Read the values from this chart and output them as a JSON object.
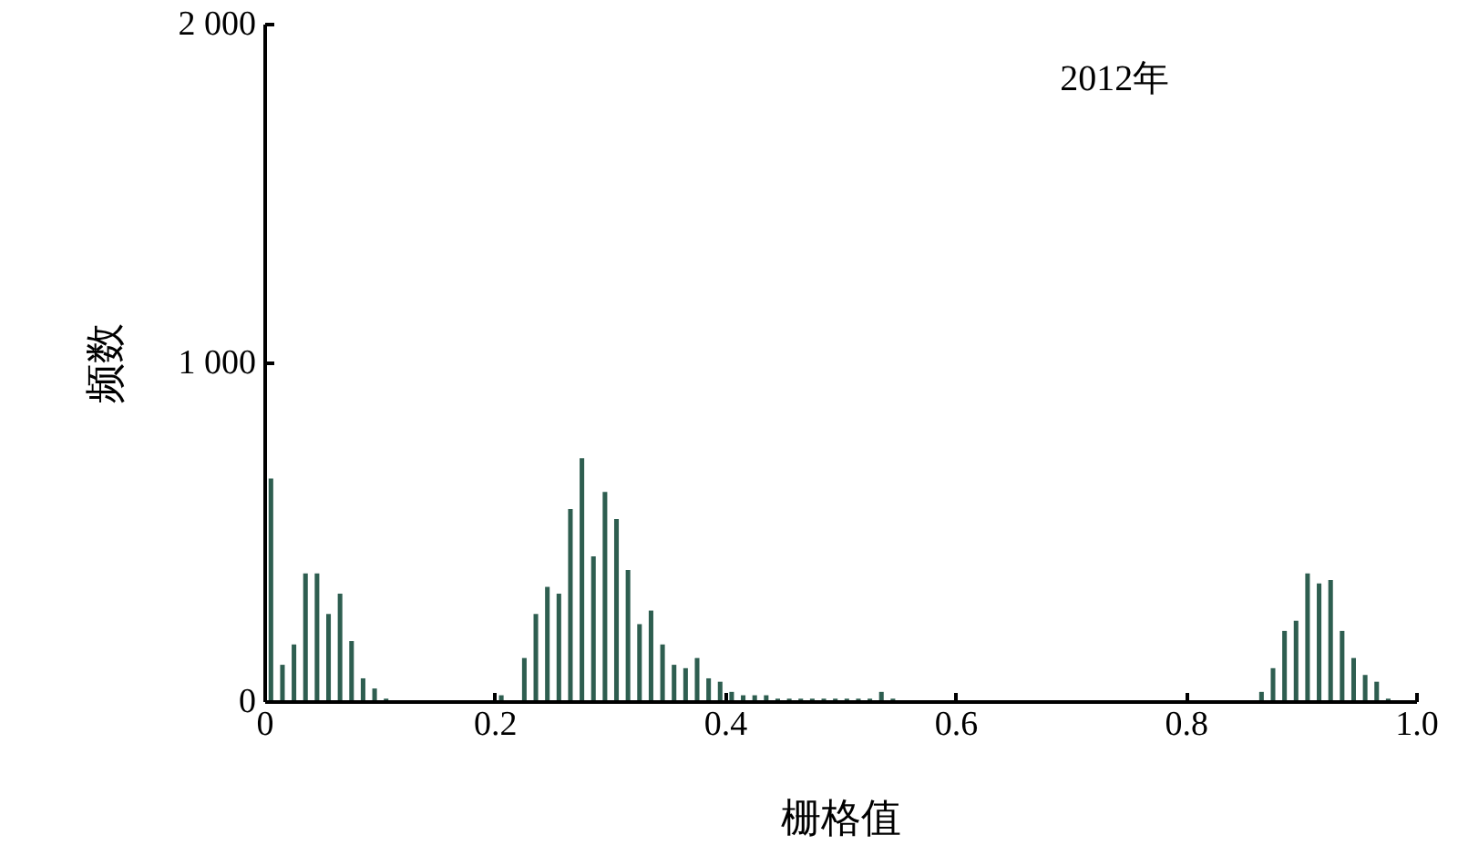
{
  "chart_data": {
    "type": "histogram",
    "xlabel": "栅格值",
    "ylabel": "频数",
    "annotations": [
      "2012年"
    ],
    "bins": [
      0,
      0.01,
      0.02,
      0.03,
      0.04,
      0.05,
      0.06,
      0.07,
      0.08,
      0.09,
      0.1,
      0.11,
      0.12,
      0.13,
      0.14,
      0.15,
      0.16,
      0.17,
      0.18,
      0.19,
      0.2,
      0.21,
      0.22,
      0.23,
      0.24,
      0.25,
      0.26,
      0.27,
      0.28,
      0.29,
      0.3,
      0.31,
      0.32,
      0.33,
      0.34,
      0.35,
      0.36,
      0.37,
      0.38,
      0.39,
      0.4,
      0.41,
      0.42,
      0.43,
      0.44,
      0.45,
      0.46,
      0.47,
      0.48,
      0.49,
      0.5,
      0.51,
      0.52,
      0.53,
      0.54,
      0.55,
      0.56,
      0.57,
      0.58,
      0.59,
      0.6,
      0.61,
      0.62,
      0.63,
      0.64,
      0.65,
      0.66,
      0.67,
      0.68,
      0.69,
      0.7,
      0.71,
      0.72,
      0.73,
      0.74,
      0.75,
      0.76,
      0.77,
      0.78,
      0.79,
      0.8,
      0.81,
      0.82,
      0.83,
      0.84,
      0.85,
      0.86,
      0.87,
      0.88,
      0.89,
      0.9,
      0.91,
      0.92,
      0.93,
      0.94,
      0.95,
      0.96,
      0.97,
      0.98,
      0.99,
      1.0
    ],
    "values": [
      660,
      110,
      170,
      380,
      380,
      260,
      320,
      180,
      70,
      40,
      10,
      0,
      0,
      0,
      0,
      0,
      0,
      0,
      0,
      0,
      20,
      0,
      130,
      260,
      340,
      320,
      570,
      720,
      430,
      620,
      540,
      390,
      230,
      270,
      170,
      110,
      100,
      130,
      70,
      60,
      30,
      20,
      20,
      20,
      10,
      10,
      10,
      10,
      10,
      10,
      10,
      10,
      10,
      30,
      10,
      0,
      0,
      0,
      0,
      0,
      0,
      0,
      0,
      0,
      0,
      0,
      0,
      0,
      0,
      0,
      0,
      0,
      0,
      0,
      0,
      0,
      0,
      0,
      0,
      0,
      0,
      0,
      0,
      0,
      0,
      0,
      30,
      100,
      210,
      240,
      380,
      350,
      360,
      210,
      130,
      80,
      60,
      10,
      0,
      0
    ],
    "color": "#2e5e50",
    "xlim": [
      0,
      1.0
    ],
    "xticks": [
      0,
      0.2,
      0.4,
      0.6,
      0.8,
      {
        "value": 1.0,
        "label": "1.0"
      }
    ],
    "ylim": [
      0,
      2000
    ],
    "yticks": [
      0,
      {
        "value": 1000,
        "label": "1 000"
      },
      {
        "value": 2000,
        "label": "2 000"
      }
    ],
    "grid": false
  }
}
